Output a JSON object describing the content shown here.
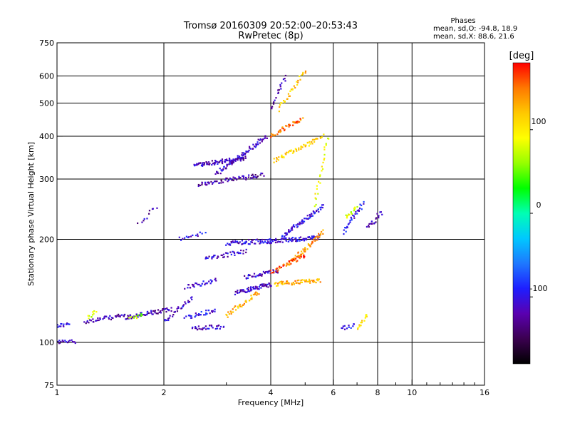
{
  "chart_data": {
    "type": "scatter",
    "title": "Tromsø 20160309 20:52:00–20:53:43",
    "subtitle": "RwPretec (8p)",
    "stats": {
      "heading": "Phases",
      "line_o": "mean, sd,O: -94.8, 18.9",
      "line_x": "mean, sd,X:  88.6, 21.6"
    },
    "xlabel": "Frequency [MHz]",
    "ylabel": "Stationary phase Virtual Height [km]",
    "x_scale": "log",
    "y_scale": "log",
    "xlim": [
      1,
      16
    ],
    "ylim": [
      75,
      750
    ],
    "x_ticks": [
      1,
      2,
      4,
      6,
      8,
      10,
      16
    ],
    "x_minor": [
      3,
      5,
      7,
      9,
      11,
      12,
      13,
      14,
      15
    ],
    "y_ticks": [
      75,
      100,
      200,
      300,
      400,
      500,
      600,
      750
    ],
    "grid_x": [
      2,
      4,
      6,
      8,
      10
    ],
    "grid_y": [
      100,
      200,
      300,
      400,
      500,
      600
    ],
    "grid": true,
    "colorbar": {
      "title": "[deg]",
      "range": [
        -180,
        180
      ],
      "ticks": [
        100,
        0,
        -100
      ],
      "colors": [
        "#000000",
        "#3b0050",
        "#5a00b0",
        "#1e1eff",
        "#1e78ff",
        "#00c8ff",
        "#00ffb4",
        "#00ff00",
        "#96ff00",
        "#ffff00",
        "#ffc800",
        "#ff7800",
        "#ff0000"
      ]
    },
    "traces": [
      {
        "f_start": 1.0,
        "f_end": 1.08,
        "h_start": 112,
        "h_end": 113,
        "phase": -105,
        "n": 14
      },
      {
        "f_start": 1.0,
        "f_end": 1.12,
        "h_start": 100,
        "h_end": 101,
        "phase": -108,
        "n": 18
      },
      {
        "f_start": 1.2,
        "f_end": 1.55,
        "h_start": 115,
        "h_end": 120,
        "phase": -120,
        "n": 40
      },
      {
        "f_start": 1.22,
        "f_end": 1.28,
        "h_start": 118,
        "h_end": 123,
        "phase": 70,
        "n": 10
      },
      {
        "f_start": 1.55,
        "f_end": 2.1,
        "h_start": 118,
        "h_end": 125,
        "phase": -118,
        "n": 60
      },
      {
        "f_start": 1.6,
        "f_end": 1.75,
        "h_start": 118,
        "h_end": 121,
        "phase": 60,
        "n": 10
      },
      {
        "f_start": 2.0,
        "f_end": 2.4,
        "h_start": 115,
        "h_end": 135,
        "phase": -110,
        "n": 30
      },
      {
        "f_start": 2.3,
        "f_end": 2.8,
        "h_start": 145,
        "h_end": 152,
        "phase": -112,
        "n": 30
      },
      {
        "f_start": 2.3,
        "f_end": 2.8,
        "h_start": 118,
        "h_end": 124,
        "phase": -100,
        "n": 30
      },
      {
        "f_start": 2.4,
        "f_end": 2.95,
        "h_start": 110,
        "h_end": 111,
        "phase": -105,
        "n": 30
      },
      {
        "f_start": 2.45,
        "f_end": 3.4,
        "h_start": 330,
        "h_end": 345,
        "phase": -115,
        "n": 80
      },
      {
        "f_start": 2.5,
        "f_end": 3.8,
        "h_start": 290,
        "h_end": 308,
        "phase": -120,
        "n": 70
      },
      {
        "f_start": 2.8,
        "f_end": 3.9,
        "h_start": 310,
        "h_end": 400,
        "phase": -112,
        "n": 80
      },
      {
        "f_start": 2.6,
        "f_end": 3.4,
        "h_start": 175,
        "h_end": 185,
        "phase": -110,
        "n": 40
      },
      {
        "f_start": 3.0,
        "f_end": 3.7,
        "h_start": 120,
        "h_end": 140,
        "phase": 130,
        "n": 40
      },
      {
        "f_start": 3.2,
        "f_end": 4.0,
        "h_start": 140,
        "h_end": 148,
        "phase": -112,
        "n": 60
      },
      {
        "f_start": 3.4,
        "f_end": 4.2,
        "h_start": 155,
        "h_end": 162,
        "phase": -110,
        "n": 40
      },
      {
        "f_start": 3.0,
        "f_end": 4.0,
        "h_start": 195,
        "h_end": 198,
        "phase": -108,
        "n": 50
      },
      {
        "f_start": 3.9,
        "f_end": 5.5,
        "h_start": 197,
        "h_end": 203,
        "phase": -105,
        "n": 80
      },
      {
        "f_start": 4.3,
        "f_end": 5.6,
        "h_start": 205,
        "h_end": 250,
        "phase": -100,
        "n": 70
      },
      {
        "f_start": 4.5,
        "f_end": 5.6,
        "h_start": 170,
        "h_end": 210,
        "phase": 140,
        "n": 60
      },
      {
        "f_start": 4.1,
        "f_end": 5.5,
        "h_start": 148,
        "h_end": 152,
        "phase": 130,
        "n": 60
      },
      {
        "f_start": 4.0,
        "f_end": 5.0,
        "h_start": 160,
        "h_end": 180,
        "phase": 160,
        "n": 40
      },
      {
        "f_start": 4.1,
        "f_end": 5.6,
        "h_start": 340,
        "h_end": 400,
        "phase": 110,
        "n": 60
      },
      {
        "f_start": 4.0,
        "f_end": 4.9,
        "h_start": 400,
        "h_end": 450,
        "phase": 150,
        "n": 40
      },
      {
        "f_start": 4.2,
        "f_end": 5.0,
        "h_start": 480,
        "h_end": 620,
        "phase": 120,
        "n": 30
      },
      {
        "f_start": 4.0,
        "f_end": 4.4,
        "h_start": 480,
        "h_end": 600,
        "phase": -120,
        "n": 20
      },
      {
        "f_start": 5.3,
        "f_end": 5.8,
        "h_start": 250,
        "h_end": 400,
        "phase": 90,
        "n": 25
      },
      {
        "f_start": 6.4,
        "f_end": 7.3,
        "h_start": 210,
        "h_end": 255,
        "phase": -100,
        "n": 30
      },
      {
        "f_start": 6.5,
        "f_end": 7.0,
        "h_start": 230,
        "h_end": 250,
        "phase": 80,
        "n": 15
      },
      {
        "f_start": 7.0,
        "f_end": 7.5,
        "h_start": 110,
        "h_end": 120,
        "phase": 110,
        "n": 15
      },
      {
        "f_start": 6.3,
        "f_end": 6.9,
        "h_start": 110,
        "h_end": 112,
        "phase": -100,
        "n": 12
      },
      {
        "f_start": 7.5,
        "f_end": 8.2,
        "h_start": 215,
        "h_end": 240,
        "phase": -120,
        "n": 20
      },
      {
        "f_start": 1.7,
        "f_end": 1.9,
        "h_start": 220,
        "h_end": 250,
        "phase": -120,
        "n": 10
      },
      {
        "f_start": 2.2,
        "f_end": 2.6,
        "h_start": 200,
        "h_end": 210,
        "phase": -100,
        "n": 15
      }
    ]
  }
}
